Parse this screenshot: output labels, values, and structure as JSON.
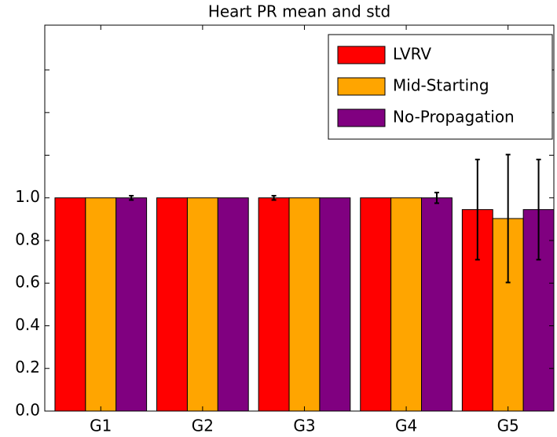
{
  "chart_data": {
    "type": "bar",
    "title": "Heart PR mean and std",
    "categories": [
      "G1",
      "G2",
      "G3",
      "G4",
      "G5"
    ],
    "series": [
      {
        "name": "LVRV",
        "color": "#ff0000",
        "values": [
          1.0,
          1.0,
          1.0,
          1.0,
          0.945
        ],
        "errors": [
          null,
          null,
          0.01,
          null,
          0.235
        ]
      },
      {
        "name": "Mid-Starting",
        "color": "#ffa500",
        "values": [
          1.0,
          1.0,
          1.0,
          1.0,
          0.903
        ],
        "errors": [
          null,
          null,
          null,
          null,
          0.3
        ]
      },
      {
        "name": "No-Propagation",
        "color": "#800080",
        "values": [
          1.0,
          1.0,
          1.0,
          1.0,
          0.945
        ],
        "errors": [
          0.01,
          null,
          null,
          0.025,
          0.235
        ]
      }
    ],
    "ylim": [
      0,
      1.81
    ],
    "yticks": [
      {
        "value": 0,
        "label": "0.0"
      },
      0.2,
      0.4,
      0.6,
      0.8,
      {
        "value": 1.0,
        "label": "1.0"
      }
    ],
    "yticks_unlabeled": [
      1.2,
      1.4,
      1.6
    ],
    "legend": "upper right",
    "grid": false
  }
}
